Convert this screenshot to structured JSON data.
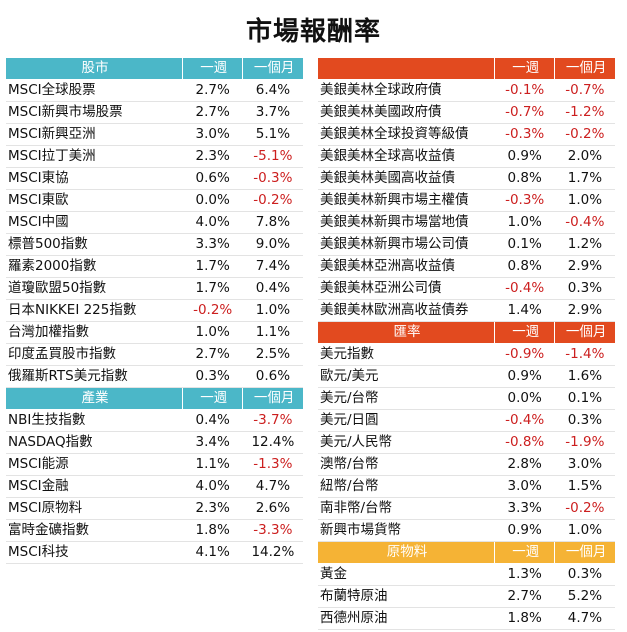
{
  "title": "市場報酬率",
  "week_label": "一週",
  "month_label": "一個月",
  "stocks": {
    "header": "股市",
    "rows": [
      {
        "name": "MSCI全球股票",
        "w": "2.7%",
        "m": "6.4%"
      },
      {
        "name": "MSCI新興市場股票",
        "w": "2.7%",
        "m": "3.7%"
      },
      {
        "name": "MSCI新興亞洲",
        "w": "3.0%",
        "m": "5.1%"
      },
      {
        "name": "MSCI拉丁美洲",
        "w": "2.3%",
        "m": "-5.1%"
      },
      {
        "name": "MSCI東協",
        "w": "0.6%",
        "m": "-0.3%"
      },
      {
        "name": "MSCI東歐",
        "w": "0.0%",
        "m": "-0.2%"
      },
      {
        "name": "MSCI中國",
        "w": "4.0%",
        "m": "7.8%"
      },
      {
        "name": "標普500指數",
        "w": "3.3%",
        "m": "9.0%"
      },
      {
        "name": "羅素2000指數",
        "w": "1.7%",
        "m": "7.4%"
      },
      {
        "name": "道瓊歐盟50指數",
        "w": "1.7%",
        "m": "0.4%"
      },
      {
        "name": "日本NIKKEI 225指數",
        "w": "-0.2%",
        "m": "1.0%"
      },
      {
        "name": "台灣加權指數",
        "w": "1.0%",
        "m": "1.1%"
      },
      {
        "name": "印度孟買股市指數",
        "w": "2.7%",
        "m": "2.5%"
      },
      {
        "name": "俄羅斯RTS美元指數",
        "w": "0.3%",
        "m": "0.6%"
      }
    ]
  },
  "industry": {
    "header": "產業",
    "rows": [
      {
        "name": "NBI生技指數",
        "w": "0.4%",
        "m": "-3.7%"
      },
      {
        "name": "NASDAQ指數",
        "w": "3.4%",
        "m": "12.4%"
      },
      {
        "name": "MSCI能源",
        "w": "1.1%",
        "m": "-1.3%"
      },
      {
        "name": "MSCI金融",
        "w": "4.0%",
        "m": "4.7%"
      },
      {
        "name": "MSCI原物料",
        "w": "2.3%",
        "m": "2.6%"
      },
      {
        "name": "富時金礦指數",
        "w": "1.8%",
        "m": "-3.3%"
      },
      {
        "name": "MSCI科技",
        "w": "4.1%",
        "m": "14.2%"
      }
    ]
  },
  "bonds": {
    "header": "",
    "rows": [
      {
        "name": "美銀美林全球政府債",
        "w": "-0.1%",
        "m": "-0.7%"
      },
      {
        "name": "美銀美林美國政府債",
        "w": "-0.7%",
        "m": "-1.2%"
      },
      {
        "name": "美銀美林全球投資等級債",
        "w": "-0.3%",
        "m": "-0.2%"
      },
      {
        "name": "美銀美林全球高收益債",
        "w": "0.9%",
        "m": "2.0%"
      },
      {
        "name": "美銀美林美國高收益債",
        "w": "0.8%",
        "m": "1.7%"
      },
      {
        "name": "美銀美林新興市場主權債",
        "w": "-0.3%",
        "m": "1.0%"
      },
      {
        "name": "美銀美林新興市場當地債",
        "w": "1.0%",
        "m": "-0.4%"
      },
      {
        "name": "美銀美林新興市場公司債",
        "w": "0.1%",
        "m": "1.2%"
      },
      {
        "name": "美銀美林亞洲高收益債",
        "w": "0.8%",
        "m": "2.9%"
      },
      {
        "name": "美銀美林亞洲公司債",
        "w": "-0.4%",
        "m": "0.3%"
      },
      {
        "name": "美銀美林歐洲高收益債券",
        "w": "1.4%",
        "m": "2.9%"
      }
    ]
  },
  "fx": {
    "header": "匯率",
    "rows": [
      {
        "name": "美元指數",
        "w": "-0.9%",
        "m": "-1.4%"
      },
      {
        "name": "歐元/美元",
        "w": "0.9%",
        "m": "1.6%"
      },
      {
        "name": "美元/台幣",
        "w": "0.0%",
        "m": "0.1%"
      },
      {
        "name": "美元/日圓",
        "w": "-0.4%",
        "m": "0.3%"
      },
      {
        "name": "美元/人民幣",
        "w": "-0.8%",
        "m": "-1.9%"
      },
      {
        "name": "澳幣/台幣",
        "w": "2.8%",
        "m": "3.0%"
      },
      {
        "name": "紐幣/台幣",
        "w": "3.0%",
        "m": "1.5%"
      },
      {
        "name": "南非幣/台幣",
        "w": "3.3%",
        "m": "-0.2%"
      },
      {
        "name": "新興市場貨幣",
        "w": "0.9%",
        "m": "1.0%"
      }
    ]
  },
  "commodities": {
    "header": "原物料",
    "rows": [
      {
        "name": "黃金",
        "w": "1.3%",
        "m": "0.3%"
      },
      {
        "name": "布蘭特原油",
        "w": "2.7%",
        "m": "5.2%"
      },
      {
        "name": "西德州原油",
        "w": "1.8%",
        "m": "4.7%"
      }
    ]
  },
  "colors": {
    "teal": "#4bb7c8",
    "red_header": "#e24a1f",
    "orange_header": "#f5b335",
    "negative_text": "#cc1f1f"
  }
}
